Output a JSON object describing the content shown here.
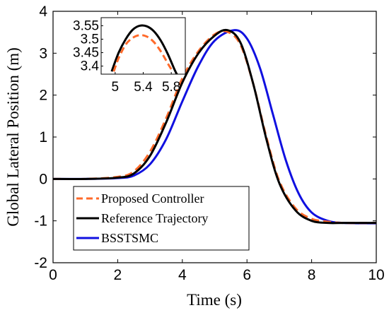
{
  "chart_data": [
    {
      "type": "line",
      "title": "",
      "xlabel": "Time (s)",
      "ylabel": "Global Lateral Position (m)",
      "xlim": [
        0,
        10
      ],
      "ylim": [
        -2,
        4
      ],
      "xticks": [
        "0",
        "2",
        "4",
        "6",
        "8",
        "10"
      ],
      "yticks": [
        "-2",
        "-1",
        "0",
        "1",
        "2",
        "3",
        "4"
      ],
      "grid": false,
      "legend_placement": "bottom-left",
      "series": [
        {
          "name": "Proposed Controller",
          "color": "#ff6a2a",
          "style": "dashed",
          "x": [
            0,
            1,
            2,
            2.5,
            3,
            3.5,
            4,
            4.5,
            5,
            5.4,
            5.8,
            6.2,
            6.6,
            7,
            7.5,
            8,
            8.5,
            9,
            10
          ],
          "y": [
            0,
            0,
            0.05,
            0.18,
            0.65,
            1.45,
            2.4,
            3.05,
            3.45,
            3.51,
            3.2,
            2.25,
            1.0,
            -0.05,
            -0.7,
            -0.95,
            -1.02,
            -1.05,
            -1.05
          ]
        },
        {
          "name": "Reference Trajectory",
          "color": "#000000",
          "style": "solid",
          "x": [
            0,
            1,
            2,
            2.5,
            3,
            3.5,
            4,
            4.5,
            5,
            5.4,
            5.8,
            6.2,
            6.6,
            7,
            7.5,
            8,
            8.5,
            9,
            10
          ],
          "y": [
            0,
            0,
            0.03,
            0.13,
            0.55,
            1.35,
            2.3,
            3.0,
            3.42,
            3.55,
            3.25,
            2.25,
            0.95,
            -0.1,
            -0.75,
            -1.0,
            -1.05,
            -1.05,
            -1.05
          ]
        },
        {
          "name": "BSSTSMC",
          "color": "#1010e0",
          "style": "solid",
          "x": [
            0,
            1,
            2,
            2.5,
            3,
            3.5,
            4,
            4.5,
            5,
            5.6,
            6,
            6.4,
            6.8,
            7.2,
            7.6,
            8,
            8.5,
            9,
            10
          ],
          "y": [
            0,
            0,
            0.02,
            0.08,
            0.35,
            0.95,
            1.85,
            2.7,
            3.3,
            3.55,
            3.35,
            2.65,
            1.55,
            0.45,
            -0.35,
            -0.8,
            -1.0,
            -1.05,
            -1.06
          ]
        }
      ]
    },
    {
      "type": "line",
      "title": "",
      "xlabel": "",
      "ylabel": "",
      "xlim": [
        4.8,
        6.0
      ],
      "ylim": [
        3.37,
        3.58
      ],
      "xticks": [
        "5",
        "5.4",
        "5.8"
      ],
      "yticks": [
        "3.4",
        "3.45",
        "3.5",
        "3.55"
      ],
      "grid": false,
      "series": [
        {
          "color": "#ff6a2a",
          "style": "dashed",
          "x": [
            4.98,
            5.05,
            5.15,
            5.25,
            5.35,
            5.45,
            5.55,
            5.65,
            5.75,
            5.82
          ],
          "y": [
            3.38,
            3.43,
            3.48,
            3.505,
            3.515,
            3.51,
            3.49,
            3.455,
            3.41,
            3.38
          ]
        },
        {
          "color": "#000000",
          "style": "solid",
          "x": [
            4.95,
            5.05,
            5.15,
            5.25,
            5.35,
            5.45,
            5.55,
            5.65,
            5.75,
            5.85,
            5.9
          ],
          "y": [
            3.38,
            3.45,
            3.5,
            3.535,
            3.55,
            3.548,
            3.53,
            3.495,
            3.445,
            3.385,
            3.36
          ]
        }
      ]
    }
  ]
}
